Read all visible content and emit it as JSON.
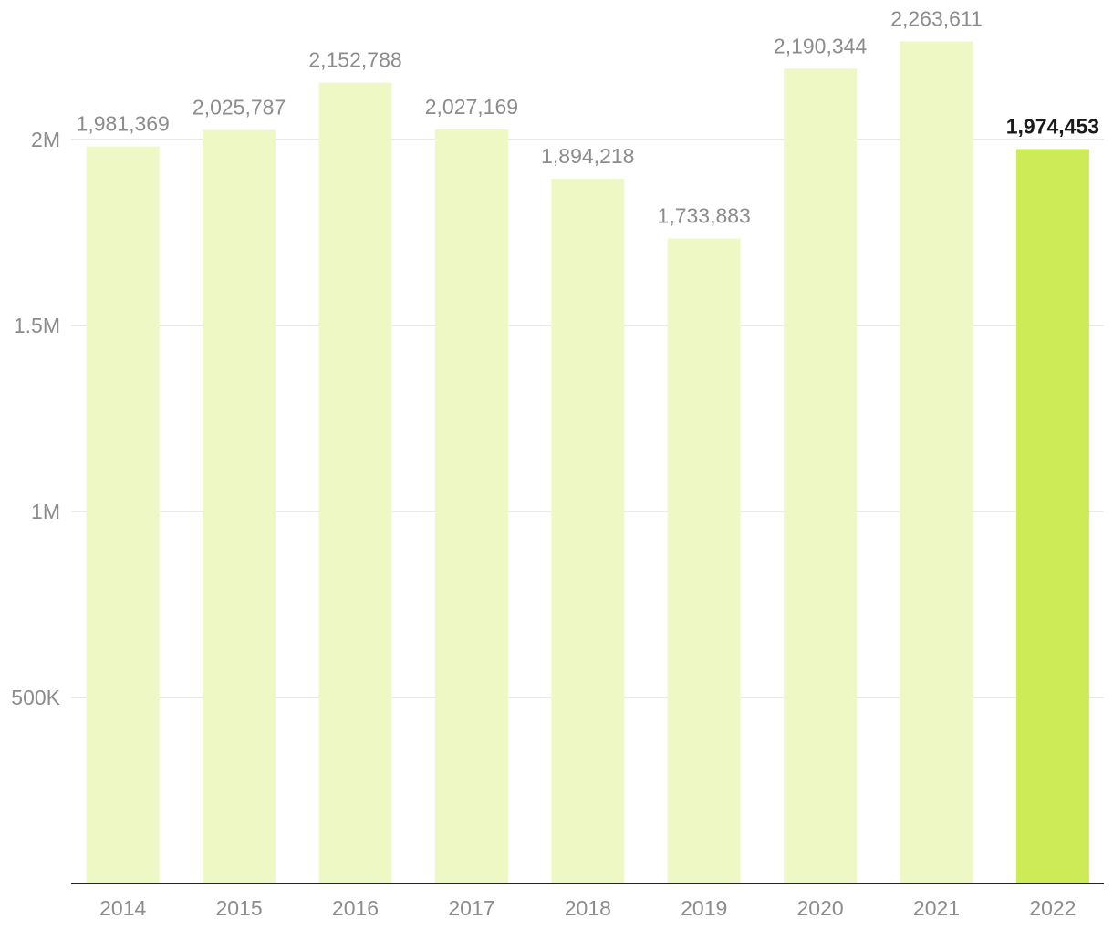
{
  "chart_data": {
    "type": "bar",
    "title": "",
    "xlabel": "",
    "ylabel": "",
    "categories": [
      "2014",
      "2015",
      "2016",
      "2017",
      "2018",
      "2019",
      "2020",
      "2021",
      "2022"
    ],
    "values": [
      1981369,
      2025787,
      2152788,
      2027169,
      1894218,
      1733883,
      2190344,
      2263611,
      1974453
    ],
    "value_labels": [
      "1,981,369",
      "2,025,787",
      "2,152,788",
      "2,027,169",
      "1,894,218",
      "1,733,883",
      "2,190,344",
      "2,263,611",
      "1,974,453"
    ],
    "ylim": [
      0,
      2000000
    ],
    "yticks": [
      500000,
      1000000,
      1500000,
      2000000
    ],
    "ytick_labels": [
      "500K",
      "1M",
      "1.5M",
      "2M"
    ],
    "grid": true,
    "legend": "none",
    "highlight_index": 8,
    "colors": {
      "bar": "#eef8c4",
      "highlight": "#cdeb57",
      "grid": "#e2e2e2",
      "axis": "#222222",
      "label": "#8c8c8c",
      "highlight_label": "#1a1a1a"
    }
  }
}
